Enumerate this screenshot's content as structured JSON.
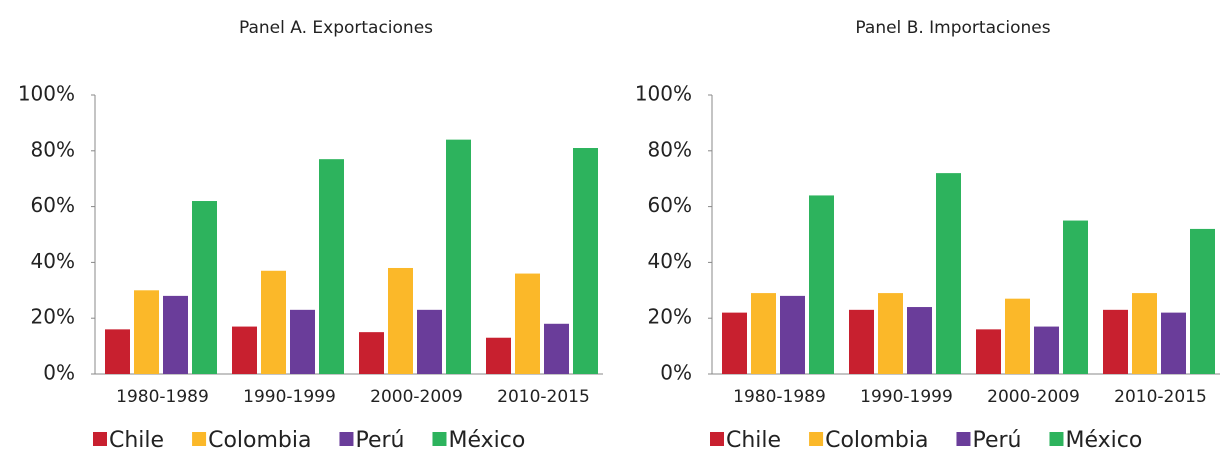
{
  "chart_data": [
    {
      "type": "bar",
      "title": "Panel A. Exportaciones",
      "categories": [
        "1980-1989",
        "1990-1999",
        "2000-2009",
        "2010-2015"
      ],
      "series": [
        {
          "name": "Chile",
          "color": "#c8202f",
          "values": [
            16,
            17,
            15,
            13
          ]
        },
        {
          "name": "Colombia",
          "color": "#fbb829",
          "values": [
            30,
            37,
            38,
            36
          ]
        },
        {
          "name": "Perú",
          "color": "#6a3d9a",
          "values": [
            28,
            23,
            23,
            18
          ]
        },
        {
          "name": "México",
          "color": "#2db35d",
          "values": [
            62,
            77,
            84,
            81
          ]
        }
      ],
      "ylim": [
        0,
        100
      ],
      "yticks": [
        {
          "value": 0,
          "label": "0%"
        },
        {
          "value": 20,
          "label": "20%"
        },
        {
          "value": 40,
          "label": "40%"
        },
        {
          "value": 60,
          "label": "60%"
        },
        {
          "value": 80,
          "label": "80%"
        },
        {
          "value": 100,
          "label": "100%"
        }
      ],
      "legend": "bottom"
    },
    {
      "type": "bar",
      "title": "Panel B. Importaciones",
      "categories": [
        "1980-1989",
        "1990-1999",
        "2000-2009",
        "2010-2015"
      ],
      "series": [
        {
          "name": "Chile",
          "color": "#c8202f",
          "values": [
            22,
            23,
            16,
            23
          ]
        },
        {
          "name": "Colombia",
          "color": "#fbb829",
          "values": [
            29,
            29,
            27,
            29
          ]
        },
        {
          "name": "Perú",
          "color": "#6a3d9a",
          "values": [
            28,
            24,
            17,
            22
          ]
        },
        {
          "name": "México",
          "color": "#2db35d",
          "values": [
            64,
            72,
            55,
            52
          ]
        }
      ],
      "ylim": [
        0,
        100
      ],
      "yticks": [
        {
          "value": 0,
          "label": "0%"
        },
        {
          "value": 20,
          "label": "20%"
        },
        {
          "value": 40,
          "label": "40%"
        },
        {
          "value": 60,
          "label": "60%"
        },
        {
          "value": 80,
          "label": "80%"
        },
        {
          "value": 100,
          "label": "100%"
        }
      ],
      "legend": "bottom"
    }
  ]
}
